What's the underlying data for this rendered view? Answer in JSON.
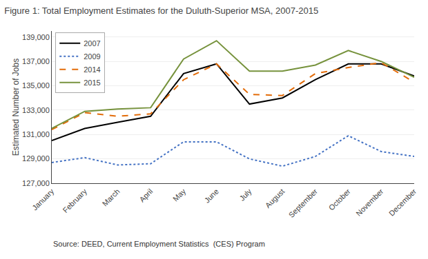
{
  "chart_data": {
    "type": "line",
    "title": "Figure 1: Total Employment Estimates for the Duluth-Superior MSA, 2007-2015",
    "ylabel": "Estimated Number of Jobs",
    "annotations": [
      "Source: DEED, Current Employment Statistics  (CES) Program"
    ],
    "categories": [
      "January",
      "February",
      "March",
      "April",
      "May",
      "June",
      "July",
      "August",
      "September",
      "October",
      "November",
      "December"
    ],
    "series": [
      {
        "name": "2007",
        "color": "#000000",
        "line_style": "solid",
        "values": [
          130500,
          131500,
          132000,
          132500,
          136000,
          136800,
          133500,
          134000,
          135500,
          136800,
          136800,
          135800
        ]
      },
      {
        "name": "2009",
        "color": "#4472c4",
        "line_style": "dotted",
        "values": [
          128700,
          129100,
          128500,
          128600,
          130400,
          130400,
          129000,
          128400,
          129200,
          130900,
          129600,
          129200
        ]
      },
      {
        "name": "2014",
        "color": "#e36c09",
        "line_style": "dashed",
        "values": [
          131400,
          132800,
          132500,
          132700,
          135500,
          136800,
          134300,
          134200,
          136000,
          136500,
          136900,
          135300
        ]
      },
      {
        "name": "2015",
        "color": "#76923c",
        "line_style": "solid",
        "values": [
          131500,
          132900,
          133100,
          133200,
          137200,
          138700,
          136200,
          136200,
          136700,
          137900,
          137000,
          135700
        ]
      }
    ],
    "ylim": [
      127000,
      139500
    ],
    "yticks": [
      {
        "value": 127000,
        "label": "127,000"
      },
      {
        "value": 129000,
        "label": "129,000"
      },
      {
        "value": 131000,
        "label": "131,000"
      },
      {
        "value": 133000,
        "label": "133,000"
      },
      {
        "value": 135000,
        "label": "135,000"
      },
      {
        "value": 137000,
        "label": "137,000"
      },
      {
        "value": 139000,
        "label": "139,000"
      }
    ],
    "grid": true,
    "legend": "upper left"
  }
}
